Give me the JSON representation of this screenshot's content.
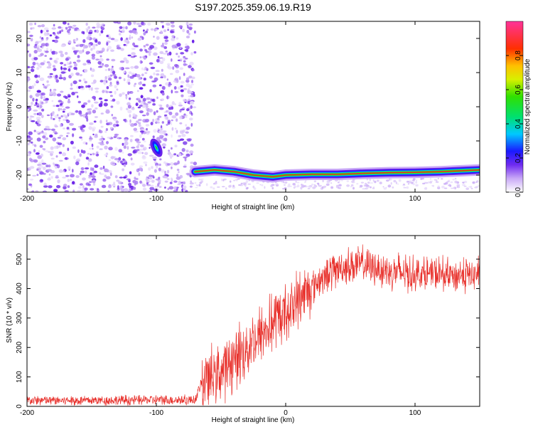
{
  "title": "S197.2025.359.06.19.R19",
  "chart_data": [
    {
      "type": "heatmap",
      "name": "spectrogram",
      "xlabel": "Height of straight line (km)",
      "ylabel": "Frequency (Hz)",
      "xlim": [
        -200,
        150
      ],
      "ylim": [
        -25,
        25
      ],
      "xticks": [
        -200,
        -100,
        0,
        100
      ],
      "yticks": [
        -20,
        -10,
        0,
        10,
        20
      ],
      "noise_region_x": [
        -200,
        -70
      ],
      "signal_start_x": -70,
      "blob_center": {
        "x": -100,
        "y": -12
      },
      "ridge": {
        "x": [
          -70,
          -55,
          -40,
          -25,
          -10,
          0,
          20,
          40,
          60,
          80,
          100,
          120,
          150
        ],
        "y": [
          -19.0,
          -18.5,
          -19.0,
          -20.0,
          -20.5,
          -20.0,
          -19.8,
          -19.8,
          -19.5,
          -19.3,
          -19.2,
          -19.0,
          -18.5
        ]
      },
      "colorbar": {
        "label": "Normalized spectral amplitude",
        "range": [
          0.0,
          1.0
        ],
        "ticks": [
          0.0,
          0.2,
          0.4,
          0.6,
          0.8
        ],
        "tick_labels": [
          "0.0",
          "0.2",
          "0.4",
          "0.6",
          "0.8"
        ]
      }
    },
    {
      "type": "line",
      "name": "snr",
      "xlabel": "Height of straight line (km)",
      "ylabel": "SNR (10 * v/v)",
      "xlim": [
        -200,
        150
      ],
      "ylim": [
        0,
        580
      ],
      "xticks": [
        -200,
        -100,
        0,
        100
      ],
      "yticks": [
        0,
        100,
        200,
        300,
        400,
        500
      ],
      "color": "#e8302b",
      "series": [
        {
          "name": "SNR",
          "x": [
            -200,
            -150,
            -100,
            -70,
            -65,
            -50,
            -40,
            -30,
            -20,
            -10,
            0,
            10,
            20,
            30,
            40,
            50,
            60,
            70,
            80,
            90,
            100,
            110,
            120,
            130,
            140,
            150
          ],
          "values": [
            20,
            20,
            22,
            22,
            80,
            120,
            160,
            200,
            240,
            280,
            320,
            360,
            410,
            440,
            470,
            480,
            480,
            470,
            460,
            455,
            450,
            450,
            445,
            445,
            445,
            450
          ]
        }
      ]
    }
  ],
  "colors": {
    "noise_purple": "#8a3ffc",
    "signal_red": "#e8302b"
  }
}
